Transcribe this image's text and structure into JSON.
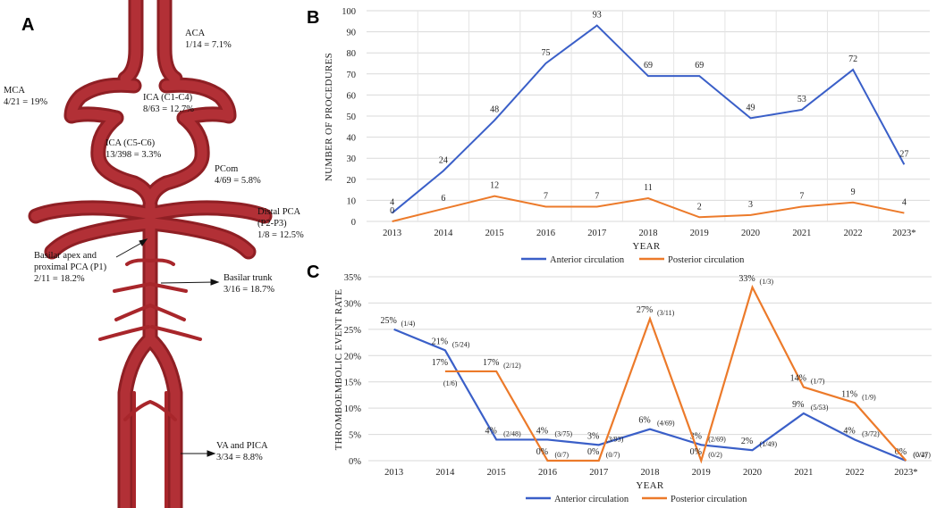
{
  "panels": {
    "a": "A",
    "b": "B",
    "c": "C"
  },
  "anatomy": [
    {
      "name": "ACA",
      "stat": "1/14 = 7.1%"
    },
    {
      "name": "MCA",
      "stat": "4/21 = 19%"
    },
    {
      "name": "ICA (C1-C4)",
      "stat": "8/63 = 12.7%"
    },
    {
      "name": "ICA (C5-C6)",
      "stat": "13/398 = 3.3%"
    },
    {
      "name": "PCom",
      "stat": "4/69 = 5.8%"
    },
    {
      "name": "Distal PCA",
      "name2": "(P2-P3)",
      "stat": "1/8 = 12.5%"
    },
    {
      "name": "Basilar apex and",
      "name2": "proximal PCA (P1)",
      "stat": "2/11 = 18.2%"
    },
    {
      "name": "Basilar trunk",
      "stat": "3/16 = 18.7%"
    },
    {
      "name": "VA and PICA",
      "stat": "3/34 = 8.8%"
    }
  ],
  "colors": {
    "anterior": "#3a5fc8",
    "posterior": "#ec7a2a",
    "artery": "#a8262b",
    "arteryLight": "#c94448",
    "grid": "#d9d9d9"
  },
  "chart_data": [
    {
      "type": "line",
      "panel": "B",
      "x": [
        "2013",
        "2014",
        "2015",
        "2016",
        "2017",
        "2018",
        "2019",
        "2020",
        "2021",
        "2022",
        "2023*"
      ],
      "xlabel": "YEAR",
      "ylabel": "NUMBER OF PROCEDURES",
      "ylim": [
        0,
        100
      ],
      "yticks": [
        0,
        10,
        20,
        30,
        40,
        50,
        60,
        70,
        80,
        90,
        100
      ],
      "grid": true,
      "legend": "bottom",
      "series": [
        {
          "name": "Anterior circulation",
          "values": [
            4,
            24,
            48,
            75,
            93,
            69,
            69,
            49,
            53,
            72,
            27
          ]
        },
        {
          "name": "Posterior  circulation",
          "values": [
            0,
            6,
            12,
            7,
            7,
            11,
            2,
            3,
            7,
            9,
            4
          ]
        }
      ]
    },
    {
      "type": "line",
      "panel": "C",
      "x": [
        "2013",
        "2014",
        "2015",
        "2016",
        "2017",
        "2018",
        "2019",
        "2020",
        "2021",
        "2022",
        "2023*"
      ],
      "xlabel": "YEAR",
      "ylabel": "THROMBOEMBOLIC EVENT RATE",
      "ylim": [
        0,
        35
      ],
      "yticks": [
        "0%",
        "5%",
        "10%",
        "15%",
        "20%",
        "25%",
        "30%",
        "35%"
      ],
      "grid": true,
      "legend": "bottom",
      "series": [
        {
          "name": "Anterior circulation",
          "values": [
            25,
            21,
            4,
            4,
            3,
            6,
            3,
            2,
            9,
            4,
            0
          ],
          "labels": [
            "25%",
            "21%",
            "4%",
            "4%",
            "3%",
            "6%",
            "3%",
            "2%",
            "9%",
            "4%",
            "0%"
          ],
          "fractions": [
            "(1/4)",
            "(5/24)",
            "(2/48)",
            "(3/75)",
            "(3/93)",
            "(4/69)",
            "(2/69)",
            "(1/49)",
            "(5/53)",
            "(3/72)",
            "(0/27)"
          ]
        },
        {
          "name": "Posterior  circulation",
          "values": [
            null,
            17,
            17,
            0,
            0,
            27,
            0,
            33,
            14,
            11,
            0
          ],
          "labels": [
            "",
            "17%",
            "17%",
            "0%",
            "0%",
            "27%",
            "0%",
            "33%",
            "14%",
            "11%",
            ""
          ],
          "fractions": [
            "",
            "(1/6)",
            "(2/12)",
            "(0/7)",
            "(0/7)",
            "(3/11)",
            "(0/2)",
            "(1/3)",
            "(1/7)",
            "(1/9)",
            "(0/4)"
          ]
        }
      ]
    }
  ]
}
